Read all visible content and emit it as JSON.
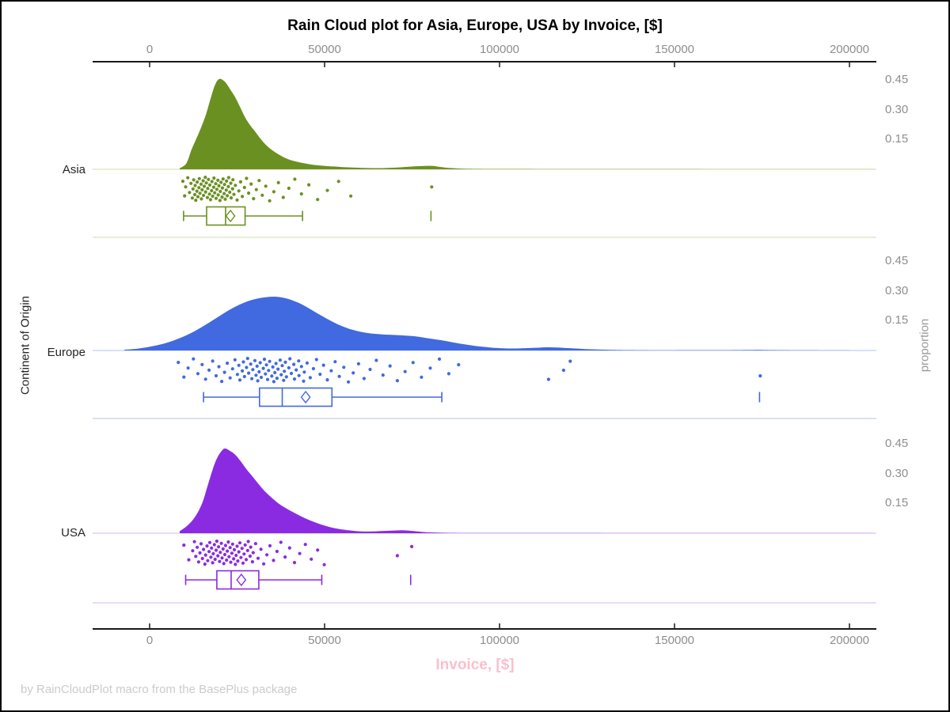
{
  "title": "Rain Cloud plot for Asia, Europe, USA by Invoice, [$]",
  "footer": "by RainCloudPlot macro from the BasePlus package",
  "x_axis": {
    "label": "Invoice, [$]",
    "label_color": "#fac0cc",
    "tick_labels": [
      "0",
      "50000",
      "100000",
      "150000",
      "200000"
    ],
    "tick_values": [
      0,
      50000,
      100000,
      150000,
      200000
    ]
  },
  "y_axis": {
    "label": "Continent of Origin",
    "categories": [
      "Asia",
      "Europe",
      "USA"
    ]
  },
  "y2_axis": {
    "label": "proportion",
    "tick_labels": [
      "0.45",
      "0.30",
      "0.15"
    ],
    "tick_values": [
      0.45,
      0.3,
      0.15
    ]
  },
  "colors": {
    "axis": "#1a1a1a",
    "tick_text": "#8e8e8e",
    "footer_text": "#cbcbcb"
  },
  "chart_data": {
    "type": "raincloud",
    "x_range": [
      0,
      200000
    ],
    "proportion_ticks": [
      0.15,
      0.3,
      0.45
    ],
    "series": [
      {
        "name": "Asia",
        "color": "#6b9022",
        "light_color": "#d9e4c1",
        "density": [
          [
            8600,
            0.005
          ],
          [
            10500,
            0.03
          ],
          [
            12000,
            0.1
          ],
          [
            13500,
            0.16
          ],
          [
            14700,
            0.21
          ],
          [
            16000,
            0.27
          ],
          [
            17000,
            0.33
          ],
          [
            18000,
            0.39
          ],
          [
            18600,
            0.42
          ],
          [
            19300,
            0.445
          ],
          [
            20100,
            0.455
          ],
          [
            21000,
            0.448
          ],
          [
            21900,
            0.432
          ],
          [
            23100,
            0.4
          ],
          [
            24400,
            0.364
          ],
          [
            25800,
            0.315
          ],
          [
            27200,
            0.264
          ],
          [
            28600,
            0.225
          ],
          [
            30100,
            0.191
          ],
          [
            31500,
            0.158
          ],
          [
            33000,
            0.127
          ],
          [
            34600,
            0.102
          ],
          [
            36200,
            0.082
          ],
          [
            37900,
            0.065
          ],
          [
            39600,
            0.051
          ],
          [
            41600,
            0.04
          ],
          [
            43700,
            0.032
          ],
          [
            45900,
            0.025
          ],
          [
            48200,
            0.02
          ],
          [
            50900,
            0.016
          ],
          [
            53800,
            0.013
          ],
          [
            56600,
            0.01
          ],
          [
            59500,
            0.008
          ],
          [
            62300,
            0.0065
          ],
          [
            65200,
            0.006
          ],
          [
            68000,
            0.007
          ],
          [
            70800,
            0.009
          ],
          [
            73300,
            0.012
          ],
          [
            75800,
            0.015
          ],
          [
            78400,
            0.017
          ],
          [
            81000,
            0.017
          ],
          [
            83000,
            0.012
          ],
          [
            84800,
            0.008
          ],
          [
            87400,
            0.005
          ],
          [
            90000,
            0.003
          ],
          [
            94000,
            0.002
          ],
          [
            98000,
            0.0015
          ],
          [
            110000,
            0.001
          ],
          [
            130000,
            0.0008
          ],
          [
            207000,
            0.0005
          ]
        ],
        "box": {
          "min": 9700,
          "q1": 16300,
          "median": 21700,
          "mean": 23100,
          "q3": 27300,
          "max": 43700,
          "outliers": [
            80400
          ]
        },
        "rain": [
          9500,
          10000,
          10300,
          10900,
          11400,
          11800,
          12200,
          12400,
          12600,
          12900,
          13000,
          13200,
          13500,
          13600,
          13800,
          14100,
          14200,
          14400,
          14700,
          14800,
          15000,
          15300,
          15400,
          15600,
          15900,
          16000,
          16200,
          16500,
          16600,
          16800,
          17100,
          17200,
          17400,
          17700,
          17800,
          18000,
          18300,
          18400,
          18600,
          18900,
          19000,
          19200,
          19500,
          19600,
          19800,
          20100,
          20200,
          20400,
          20700,
          20800,
          21000,
          21300,
          21400,
          21600,
          21900,
          22000,
          22200,
          22500,
          22600,
          22900,
          23200,
          23300,
          23700,
          23800,
          24100,
          24500,
          25000,
          25500,
          26000,
          26500,
          27100,
          27700,
          28300,
          29000,
          29700,
          30500,
          31300,
          32200,
          33200,
          34300,
          35500,
          36800,
          38200,
          39800,
          41500,
          43400,
          45500,
          48000,
          50800,
          54000,
          57500,
          80600
        ]
      },
      {
        "name": "Europe",
        "color": "#4169e0",
        "light_color": "#c2cff2",
        "density": [
          [
            -7200,
            0.004
          ],
          [
            -4000,
            0.008
          ],
          [
            -1600,
            0.014
          ],
          [
            1800,
            0.025
          ],
          [
            5200,
            0.04
          ],
          [
            8600,
            0.062
          ],
          [
            12000,
            0.089
          ],
          [
            15400,
            0.123
          ],
          [
            18800,
            0.16
          ],
          [
            22200,
            0.198
          ],
          [
            25600,
            0.23
          ],
          [
            29000,
            0.253
          ],
          [
            32400,
            0.266
          ],
          [
            35800,
            0.2705
          ],
          [
            39100,
            0.262
          ],
          [
            41400,
            0.248
          ],
          [
            43700,
            0.23
          ],
          [
            46000,
            0.207
          ],
          [
            48200,
            0.184
          ],
          [
            50500,
            0.161
          ],
          [
            52700,
            0.141
          ],
          [
            55000,
            0.122
          ],
          [
            57200,
            0.108
          ],
          [
            59500,
            0.097
          ],
          [
            61800,
            0.089
          ],
          [
            64100,
            0.084
          ],
          [
            66300,
            0.081
          ],
          [
            68600,
            0.079
          ],
          [
            70800,
            0.077
          ],
          [
            73100,
            0.075
          ],
          [
            75300,
            0.072
          ],
          [
            77600,
            0.067
          ],
          [
            79800,
            0.061
          ],
          [
            82100,
            0.055
          ],
          [
            84400,
            0.048
          ],
          [
            86600,
            0.041
          ],
          [
            88900,
            0.034
          ],
          [
            91100,
            0.028
          ],
          [
            93400,
            0.022
          ],
          [
            95700,
            0.018
          ],
          [
            97900,
            0.014
          ],
          [
            100900,
            0.011
          ],
          [
            103600,
            0.01
          ],
          [
            106300,
            0.011
          ],
          [
            108100,
            0.012
          ],
          [
            111000,
            0.014
          ],
          [
            113800,
            0.016
          ],
          [
            116600,
            0.015
          ],
          [
            119400,
            0.012
          ],
          [
            122800,
            0.009
          ],
          [
            126200,
            0.006
          ],
          [
            130000,
            0.004
          ],
          [
            134100,
            0.0025
          ],
          [
            140000,
            0.0015
          ],
          [
            150000,
            0.001
          ],
          [
            165000,
            0.0015
          ],
          [
            171000,
            0.0025
          ],
          [
            174400,
            0.003
          ],
          [
            178000,
            0.002
          ],
          [
            185000,
            0.001
          ],
          [
            200000,
            0.0005
          ]
        ],
        "box": {
          "min": 15400,
          "q1": 31400,
          "median": 37900,
          "mean": 44600,
          "q3": 52100,
          "max": 83500,
          "outliers": [
            174300
          ]
        },
        "rain": [
          8200,
          9800,
          11000,
          12500,
          13800,
          15000,
          16000,
          17000,
          18000,
          19000,
          19800,
          20600,
          21400,
          22200,
          23000,
          23700,
          24400,
          25100,
          25500,
          25800,
          26500,
          26800,
          27100,
          27700,
          28000,
          28300,
          28900,
          29200,
          29500,
          30100,
          30400,
          30700,
          30900,
          31300,
          31600,
          31900,
          32500,
          32800,
          33100,
          33400,
          33700,
          34000,
          34300,
          34900,
          35200,
          35500,
          35800,
          36100,
          36400,
          36700,
          37300,
          37600,
          37900,
          38300,
          38500,
          38800,
          39100,
          39800,
          40100,
          40500,
          41200,
          41400,
          41900,
          42600,
          42700,
          43400,
          44000,
          44200,
          45000,
          45900,
          46800,
          47700,
          48700,
          49700,
          50800,
          51900,
          53000,
          54200,
          55500,
          56800,
          58200,
          59700,
          61300,
          63000,
          64800,
          66700,
          68700,
          70800,
          73000,
          75300,
          77700,
          80200,
          82800,
          85500,
          88300,
          114000,
          118300,
          120200,
          174500
        ]
      },
      {
        "name": "USA",
        "color": "#8a2be2",
        "light_color": "#dfc8f0",
        "density": [
          [
            8600,
            0.01
          ],
          [
            10900,
            0.04
          ],
          [
            13100,
            0.085
          ],
          [
            15000,
            0.15
          ],
          [
            16500,
            0.234
          ],
          [
            18000,
            0.32
          ],
          [
            19200,
            0.375
          ],
          [
            20400,
            0.41
          ],
          [
            21500,
            0.426
          ],
          [
            22900,
            0.415
          ],
          [
            24400,
            0.396
          ],
          [
            26100,
            0.36
          ],
          [
            27800,
            0.319
          ],
          [
            30100,
            0.27
          ],
          [
            32400,
            0.221
          ],
          [
            34600,
            0.183
          ],
          [
            36900,
            0.149
          ],
          [
            39100,
            0.124
          ],
          [
            41400,
            0.102
          ],
          [
            43600,
            0.082
          ],
          [
            45900,
            0.064
          ],
          [
            48200,
            0.049
          ],
          [
            50500,
            0.036
          ],
          [
            52700,
            0.026
          ],
          [
            55000,
            0.019
          ],
          [
            57800,
            0.013
          ],
          [
            60600,
            0.009
          ],
          [
            63400,
            0.009
          ],
          [
            66300,
            0.011
          ],
          [
            69100,
            0.013
          ],
          [
            71900,
            0.015
          ],
          [
            74700,
            0.012
          ],
          [
            77600,
            0.007
          ],
          [
            80400,
            0.004
          ],
          [
            84400,
            0.002
          ],
          [
            90000,
            0.001
          ],
          [
            110000,
            0.0007
          ],
          [
            207000,
            0.0004
          ]
        ],
        "box": {
          "min": 10300,
          "q1": 19200,
          "median": 23300,
          "mean": 26200,
          "q3": 31200,
          "max": 49200,
          "outliers": [
            74600
          ]
        },
        "rain": [
          9800,
          11200,
          12300,
          12800,
          13200,
          13600,
          14000,
          14400,
          14700,
          15100,
          15400,
          15800,
          16000,
          16400,
          16600,
          17000,
          17200,
          17500,
          17700,
          18000,
          18200,
          18500,
          18700,
          19000,
          19200,
          19500,
          19700,
          20000,
          20200,
          20500,
          20700,
          21000,
          21200,
          21500,
          21700,
          22000,
          22200,
          22500,
          22700,
          23000,
          23200,
          23500,
          23700,
          24000,
          24200,
          24500,
          24700,
          25000,
          25200,
          25500,
          25800,
          26100,
          26400,
          26700,
          27000,
          27300,
          27600,
          28000,
          28200,
          28700,
          28900,
          29400,
          29600,
          30300,
          31000,
          31800,
          32600,
          33500,
          34400,
          35400,
          36400,
          37500,
          38700,
          40000,
          41400,
          42900,
          44500,
          46200,
          48000,
          49900,
          70800,
          74900
        ]
      }
    ]
  }
}
